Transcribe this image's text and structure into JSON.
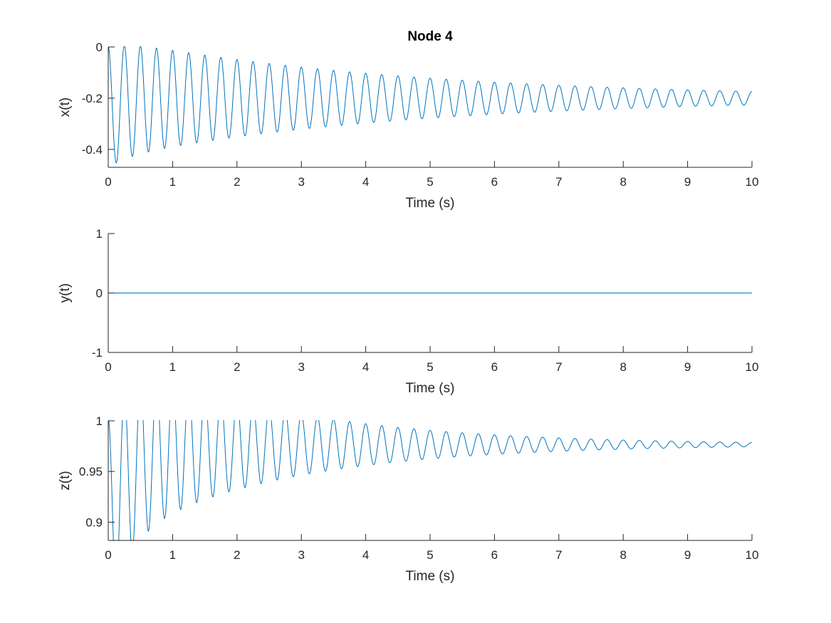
{
  "figure": {
    "title": "Node 4"
  },
  "chart_data": [
    {
      "type": "line",
      "title": "Node 4",
      "xlabel": "Time (s)",
      "ylabel": "x(t)",
      "xlim": [
        0,
        10
      ],
      "ylim": [
        -0.47,
        0
      ],
      "xticks": [
        0,
        1,
        2,
        3,
        4,
        5,
        6,
        7,
        8,
        9,
        10
      ],
      "yticks": [
        0,
        -0.2,
        -0.4
      ],
      "ytick_labels": [
        "0",
        "-0.2",
        "-0.4"
      ],
      "grid": false,
      "series": [
        {
          "color": "#0072BD",
          "model": "damped-oscillation",
          "sample_points": [
            {
              "x": 0.0,
              "y": 0.0
            },
            {
              "x": 0.14,
              "y": -0.47
            },
            {
              "x": 0.29,
              "y": -0.01
            },
            {
              "x": 0.42,
              "y": -0.44
            },
            {
              "x": 0.55,
              "y": -0.02
            },
            {
              "x": 1.0,
              "y": -0.4
            },
            {
              "x": 2.0,
              "y": -0.34
            },
            {
              "x": 3.0,
              "y": -0.3
            },
            {
              "x": 4.0,
              "y": -0.27
            },
            {
              "x": 5.0,
              "y": -0.25
            },
            {
              "x": 6.0,
              "y": -0.235
            },
            {
              "x": 7.0,
              "y": -0.225
            },
            {
              "x": 8.0,
              "y": -0.22
            },
            {
              "x": 9.0,
              "y": -0.215
            },
            {
              "x": 10.0,
              "y": -0.21
            }
          ],
          "mean": -0.2,
          "initial_amplitude": 0.235,
          "decay_rate": 0.22,
          "period": 0.25,
          "end_value": -0.21
        }
      ]
    },
    {
      "type": "line",
      "xlabel": "Time (s)",
      "ylabel": "y(t)",
      "xlim": [
        0,
        10
      ],
      "ylim": [
        -1,
        1
      ],
      "xticks": [
        0,
        1,
        2,
        3,
        4,
        5,
        6,
        7,
        8,
        9,
        10
      ],
      "yticks": [
        1,
        0,
        -1
      ],
      "ytick_labels": [
        "1",
        "0",
        "-1"
      ],
      "grid": false,
      "series": [
        {
          "color": "#0072BD",
          "model": "constant",
          "sample_points": [
            {
              "x": 0,
              "y": 0
            },
            {
              "x": 10,
              "y": 0
            }
          ]
        }
      ]
    },
    {
      "type": "line",
      "xlabel": "Time (s)",
      "ylabel": "z(t)",
      "xlim": [
        0,
        10
      ],
      "ylim": [
        0.882,
        1.0
      ],
      "xticks": [
        0,
        1,
        2,
        3,
        4,
        5,
        6,
        7,
        8,
        9,
        10
      ],
      "yticks": [
        1,
        0.95,
        0.9
      ],
      "ytick_labels": [
        "1",
        "0.95",
        "0.9"
      ],
      "grid": false,
      "series": [
        {
          "color": "#0072BD",
          "model": "damped-oscillation",
          "sample_points": [
            {
              "x": 0.0,
              "y": 1.0
            },
            {
              "x": 0.14,
              "y": 0.882
            },
            {
              "x": 0.29,
              "y": 1.0
            },
            {
              "x": 0.42,
              "y": 0.894
            },
            {
              "x": 1.0,
              "y": 0.912
            },
            {
              "x": 2.0,
              "y": 0.933
            },
            {
              "x": 3.0,
              "y": 0.947
            },
            {
              "x": 4.0,
              "y": 0.958
            },
            {
              "x": 5.0,
              "y": 0.965
            },
            {
              "x": 6.0,
              "y": 0.97
            },
            {
              "x": 7.0,
              "y": 0.973
            },
            {
              "x": 8.0,
              "y": 0.975
            },
            {
              "x": 9.0,
              "y": 0.976
            },
            {
              "x": 10.0,
              "y": 0.978
            }
          ],
          "mean": 0.9765,
          "initial_amplitude": 0.0945,
          "decay_rate": 0.38,
          "period": 0.25,
          "end_value": 0.978
        }
      ]
    }
  ]
}
